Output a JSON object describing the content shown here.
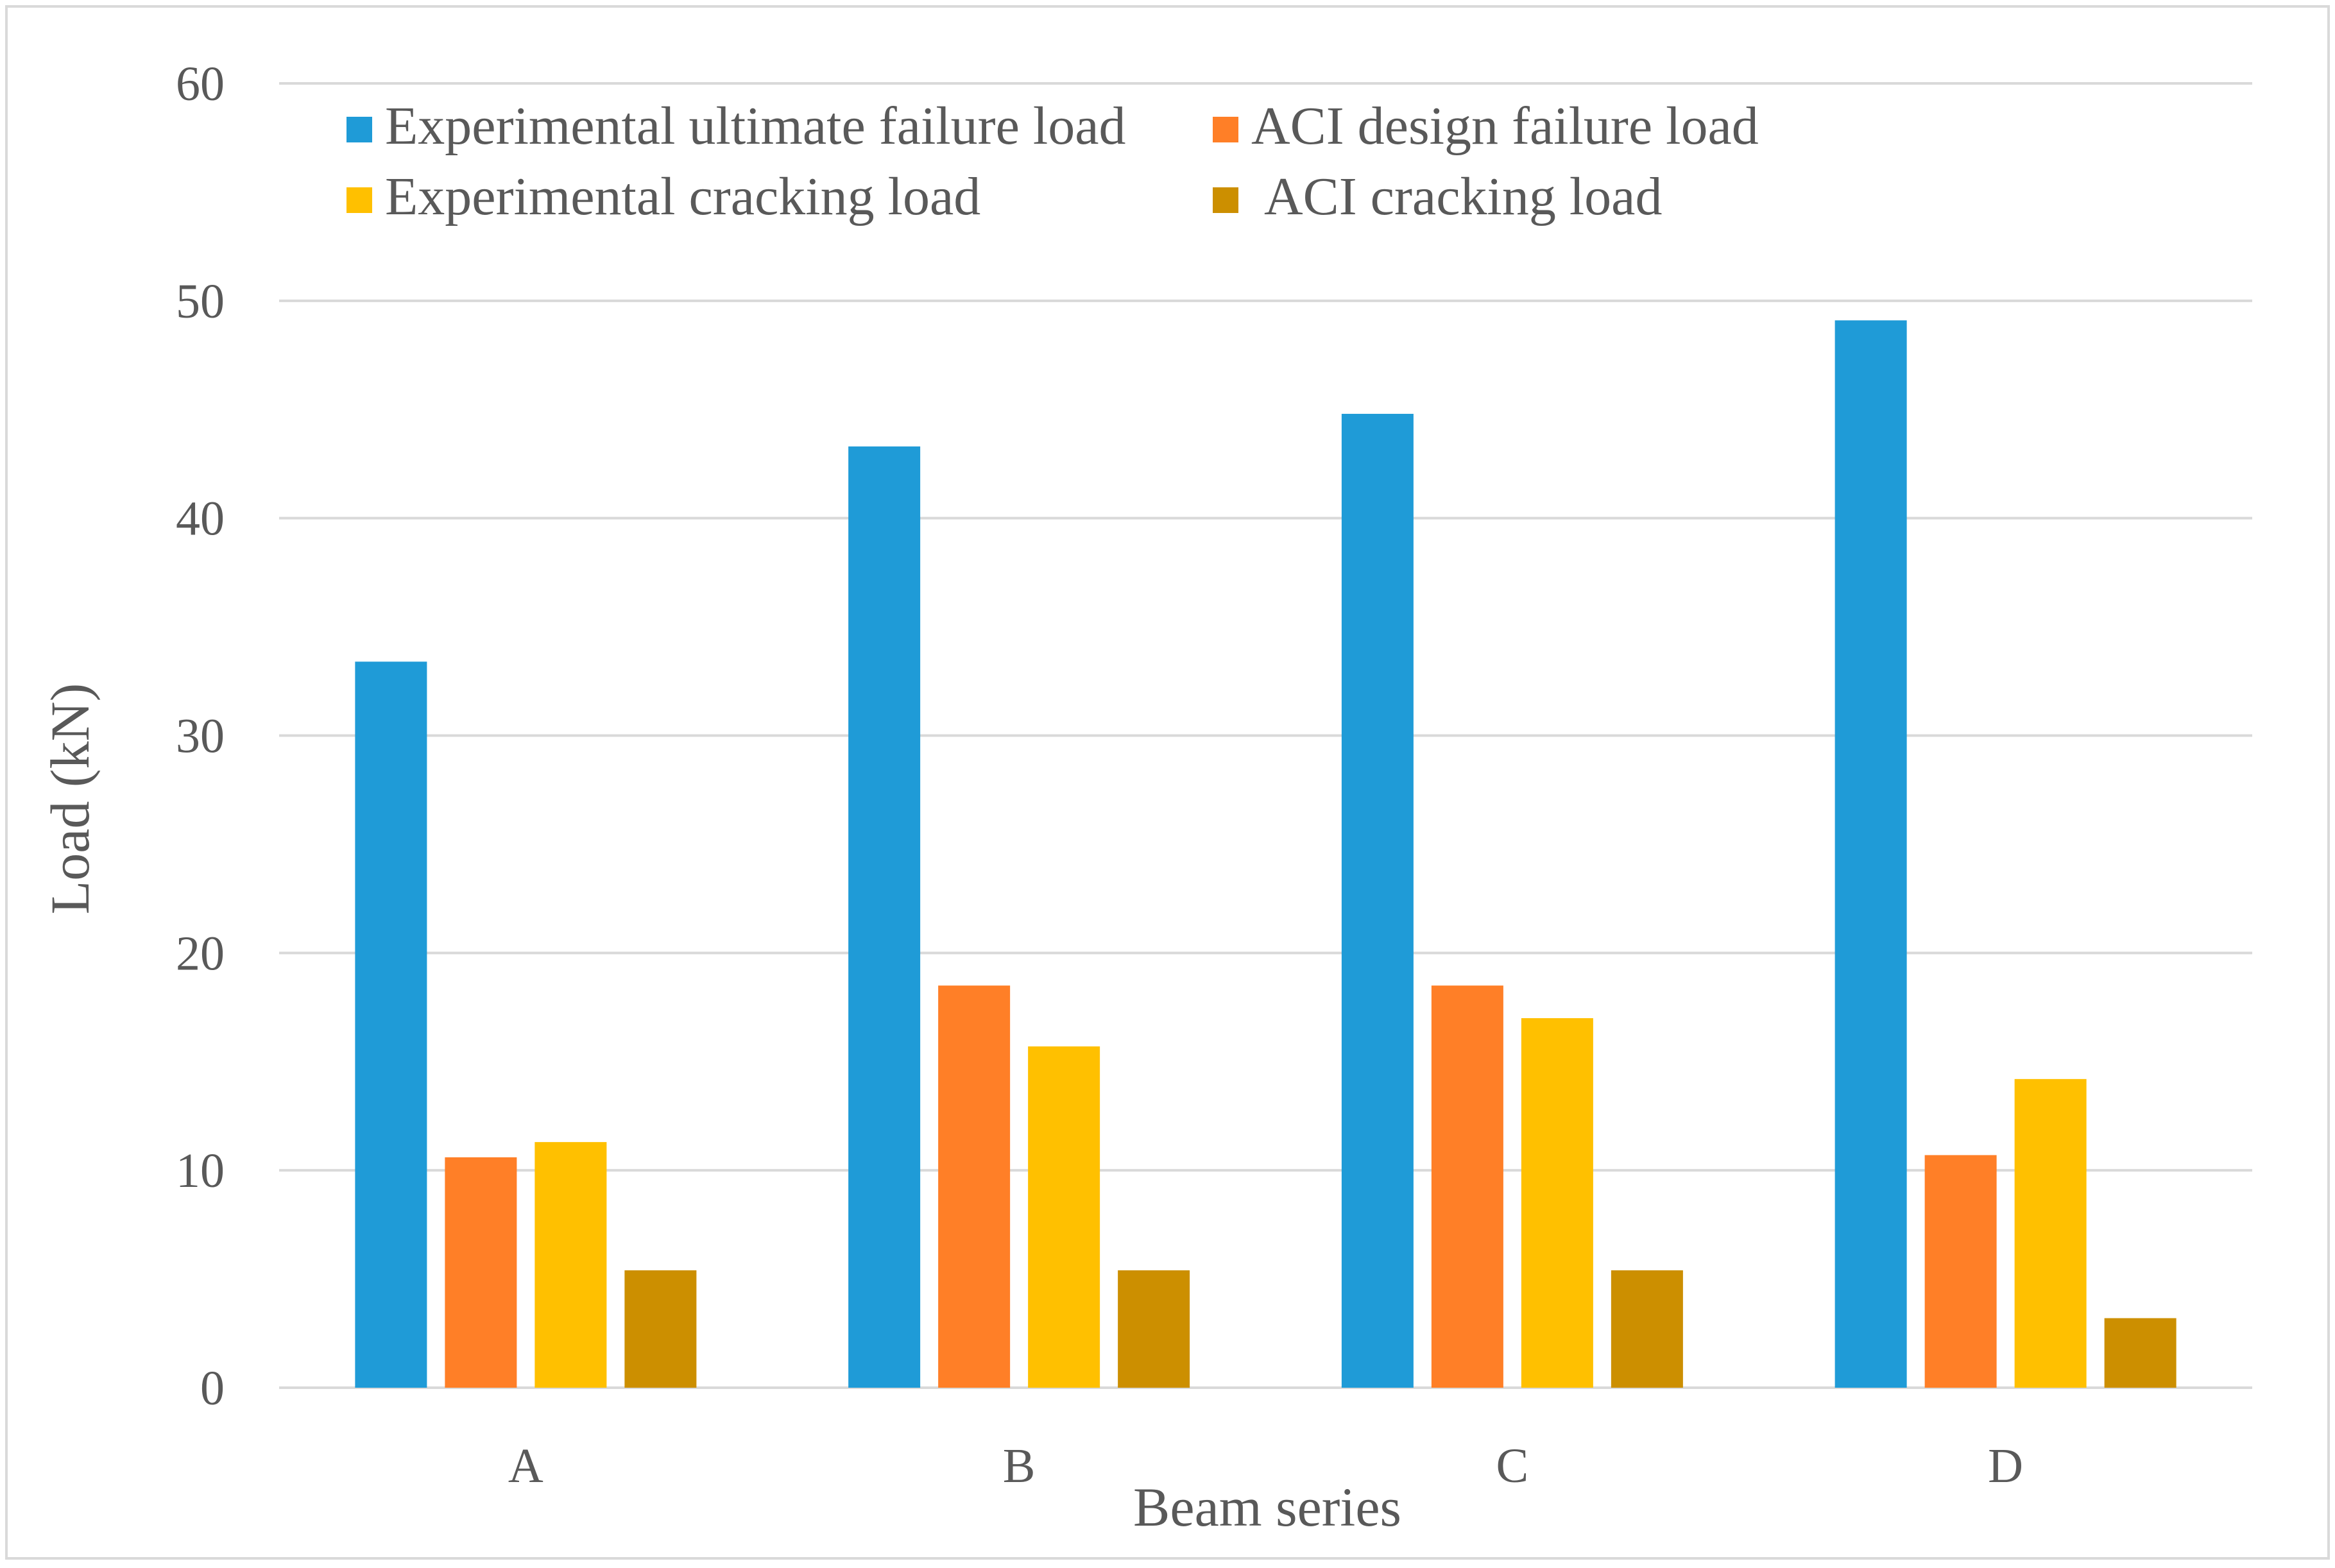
{
  "chart_data": {
    "type": "bar",
    "title": "",
    "xlabel": "Beam series",
    "ylabel": "Load (kN)",
    "ylim": [
      0,
      60
    ],
    "yticks": [
      0,
      10,
      20,
      30,
      40,
      50,
      60
    ],
    "grid": true,
    "legend_position": "top-left, inside plot, two columns",
    "categories": [
      "A",
      "B",
      "C",
      "D"
    ],
    "series": [
      {
        "name": "Experimental ultimate failure load",
        "color": "#1F9BD7",
        "values": [
          33.4,
          43.3,
          44.8,
          49.1
        ]
      },
      {
        "name": "ACI design failure load",
        "color": "#FF7F27",
        "values": [
          10.6,
          18.5,
          18.5,
          10.7
        ]
      },
      {
        "name": "Experimental cracking load",
        "color": "#FFC000",
        "values": [
          11.3,
          15.7,
          17.0,
          14.2
        ]
      },
      {
        "name": "ACI cracking load",
        "color": "#CC8F00",
        "values": [
          5.4,
          5.4,
          5.4,
          3.2
        ]
      }
    ]
  }
}
